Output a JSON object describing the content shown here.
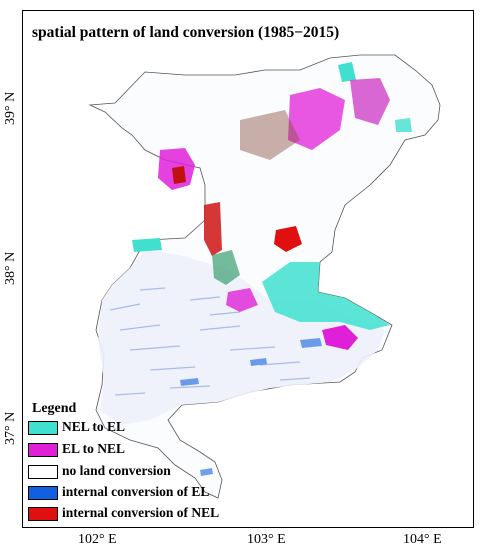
{
  "map": {
    "title": "spatial pattern of land conversion (1985−2015)",
    "x_ticks": [
      "102° E",
      "103° E",
      "104° E"
    ],
    "y_ticks": [
      "39° N",
      "38° N",
      "37° N"
    ],
    "colors": {
      "nel_to_el": "#40e0d0",
      "el_to_nel": "#e020d8",
      "no_conversion": "#ffffff",
      "internal_el": "#1060e0",
      "internal_nel": "#e01010",
      "boundary": "#555555"
    }
  },
  "legend": {
    "title": "Legend",
    "items": [
      {
        "label": "NEL to EL",
        "color": "#40e0d0"
      },
      {
        "label": "EL to NEL",
        "color": "#e020d8"
      },
      {
        "label": "no land conversion",
        "color": "#ffffff"
      },
      {
        "label": "internal conversion of EL",
        "color": "#1060e0"
      },
      {
        "label": "internal conversion of NEL",
        "color": "#e01010"
      }
    ]
  }
}
